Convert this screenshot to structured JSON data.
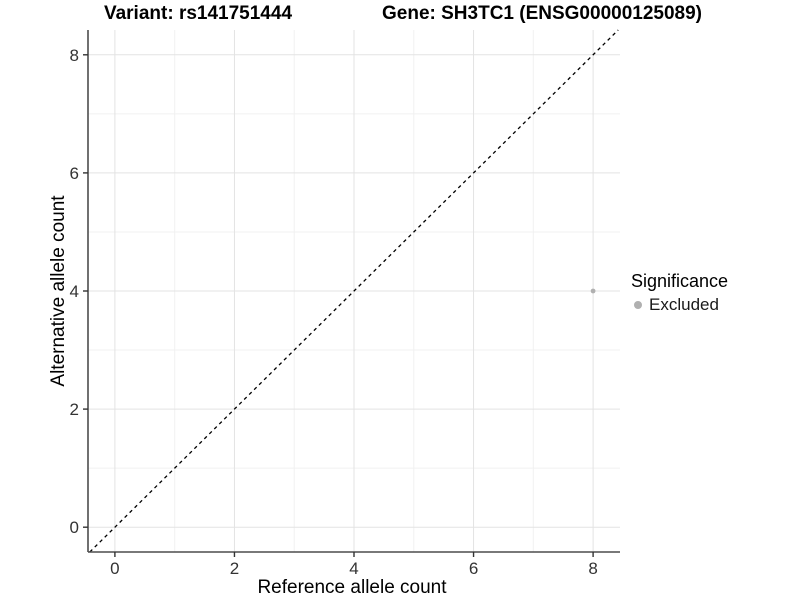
{
  "titles": {
    "variant": "Variant: rs141751444",
    "gene": "Gene: SH3TC1 (ENSG00000125089)"
  },
  "axes": {
    "x": {
      "label": "Reference allele count",
      "ticks": [
        0,
        2,
        4,
        6,
        8
      ]
    },
    "y": {
      "label": "Alternative allele count",
      "ticks": [
        0,
        2,
        4,
        6,
        8
      ]
    }
  },
  "legend": {
    "title": "Significance",
    "items": [
      {
        "label": "Excluded",
        "color": "#b0b0b0"
      }
    ]
  },
  "colors": {
    "background": "#ffffff",
    "grid_major": "#e3e3e3",
    "grid_minor": "#f1f1f1",
    "axis_line": "#4d4d4d",
    "tick_mark": "#333333",
    "tick_label": "#333333",
    "title_text": "#000000",
    "identity_line": "#000000",
    "excluded_point": "#b0b0b0"
  },
  "chart_data": {
    "type": "scatter",
    "title": "Variant: rs141751444 — Gene: SH3TC1 (ENSG00000125089)",
    "xlabel": "Reference allele count",
    "ylabel": "Alternative allele count",
    "xlim": [
      -0.45,
      8.45
    ],
    "ylim": [
      -0.42,
      8.42
    ],
    "x_ticks": [
      0,
      2,
      4,
      6,
      8
    ],
    "y_ticks": [
      0,
      2,
      4,
      6,
      8
    ],
    "x_minor_ticks": [
      1,
      3,
      5,
      7
    ],
    "y_minor_ticks": [
      1,
      3,
      5,
      7
    ],
    "grid": "major and minor, light gray on white",
    "legend_position": "right, vertically centered",
    "series": [
      {
        "name": "Excluded",
        "color": "#b0b0b0",
        "point_radius_px": 2.4,
        "points": [
          {
            "x": 8,
            "y": 4
          }
        ]
      }
    ],
    "reference_line": {
      "kind": "identity y=x",
      "style": "dashed",
      "color": "#000000",
      "from": [
        -0.42,
        -0.42
      ],
      "to": [
        8.42,
        8.42
      ]
    }
  }
}
